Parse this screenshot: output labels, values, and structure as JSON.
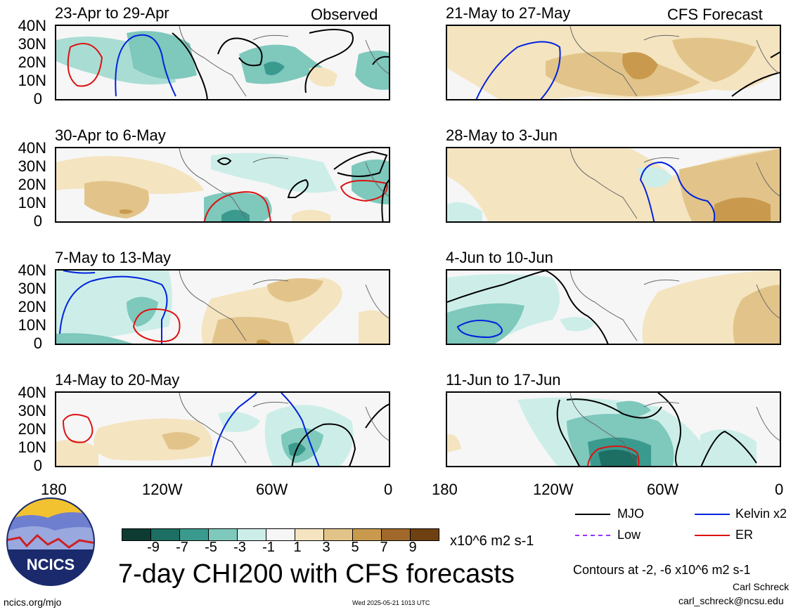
{
  "panels": [
    {
      "title": "23-Apr to 29-Apr",
      "corner": "Observed"
    },
    {
      "title": "30-Apr to 6-May",
      "corner": ""
    },
    {
      "title": "7-May to 13-May",
      "corner": ""
    },
    {
      "title": "14-May to 20-May",
      "corner": ""
    },
    {
      "title": "21-May to 27-May",
      "corner": "CFS Forecast"
    },
    {
      "title": "28-May to 3-Jun",
      "corner": ""
    },
    {
      "title": "4-Jun to 10-Jun",
      "corner": ""
    },
    {
      "title": "11-Jun to 17-Jun",
      "corner": ""
    }
  ],
  "lat_ticks": [
    "40N",
    "30N",
    "20N",
    "10N",
    "0"
  ],
  "lon_ticks": [
    "180",
    "120W",
    "60W",
    "0"
  ],
  "colorbar": {
    "labels": [
      "-9",
      "-7",
      "-5",
      "-3",
      "-1",
      "1",
      "3",
      "5",
      "7",
      "9"
    ],
    "colors": [
      "#0d3b32",
      "#1d6e63",
      "#3b9a8e",
      "#7ec8bc",
      "#cdeee8",
      "#f6f6f6",
      "#f4e4c0",
      "#e2c48a",
      "#c99a4e",
      "#a0682a",
      "#6e4012"
    ],
    "units": "x10^6 m2 s-1"
  },
  "legend": {
    "mjo": {
      "label": "MJO",
      "color": "#000000"
    },
    "kelvin": {
      "label": "Kelvin x2",
      "color": "#0022dd"
    },
    "low": {
      "label": "Low",
      "color": "#9b30ff"
    },
    "er": {
      "label": "ER",
      "color": "#dd1111"
    }
  },
  "main_title": "7-day CHI200 with CFS forecasts",
  "contour_note": "Contours at -2, -6 x10^6 m2 s-1",
  "logo_text": "NCICS",
  "footer": {
    "url": "ncics.org/mjo",
    "timestamp": "Wed 2025-05-21 1013 UTC",
    "author": "Carl Schreck",
    "email": "carl_schreck@ncsu.edu"
  }
}
